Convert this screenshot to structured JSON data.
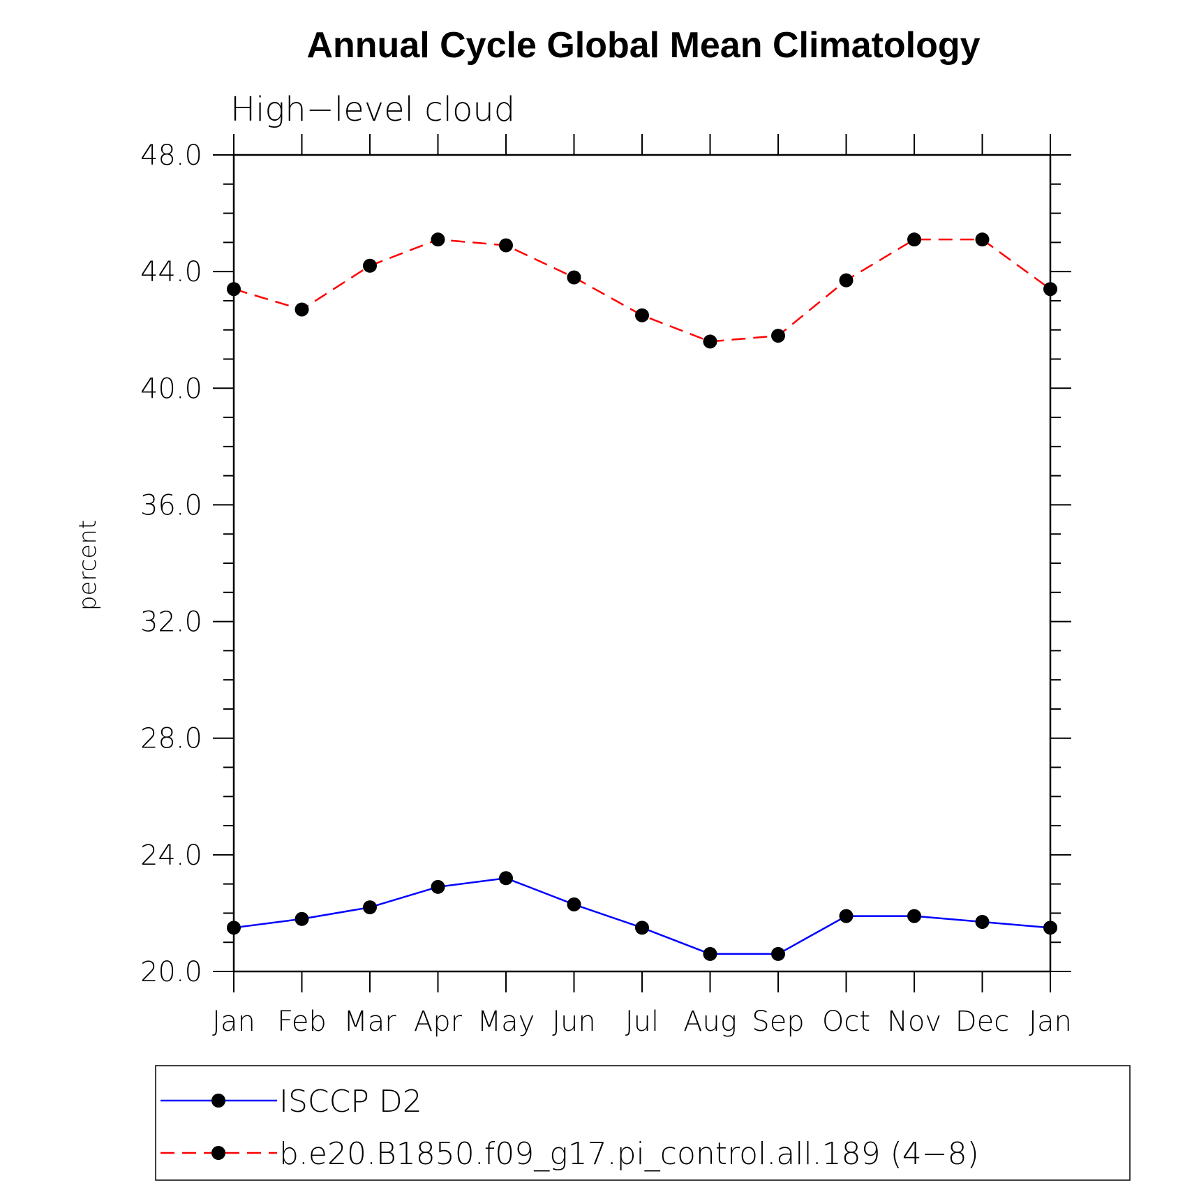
{
  "chart_data": {
    "type": "line",
    "title": "Annual Cycle Global Mean Climatology",
    "subtitle": "High−level cloud",
    "ylabel": "percent",
    "xlabel": "",
    "categories": [
      "Jan",
      "Feb",
      "Mar",
      "Apr",
      "May",
      "Jun",
      "Jul",
      "Aug",
      "Sep",
      "Oct",
      "Nov",
      "Dec",
      "Jan"
    ],
    "ylim": [
      20,
      48
    ],
    "yticks": [
      "20.0",
      "24.0",
      "28.0",
      "32.0",
      "36.0",
      "40.0",
      "44.0",
      "48.0"
    ],
    "grid": false,
    "legend_position": "bottom",
    "series": [
      {
        "name": "ISCCP D2",
        "color": "#0000ff",
        "line_style": "solid",
        "marker": "filled-circle",
        "values": [
          21.5,
          21.8,
          22.2,
          22.9,
          23.2,
          22.3,
          21.5,
          20.6,
          20.6,
          21.9,
          21.9,
          21.7,
          21.5
        ]
      },
      {
        "name": "b.e20.B1850.f09_g17.pi_control.all.189 (4−8)",
        "color": "#ff0000",
        "line_style": "dashed",
        "marker": "filled-circle",
        "values": [
          43.4,
          42.7,
          44.2,
          45.1,
          44.9,
          43.8,
          42.5,
          41.6,
          41.8,
          43.7,
          45.1,
          45.1,
          43.4
        ]
      }
    ]
  }
}
